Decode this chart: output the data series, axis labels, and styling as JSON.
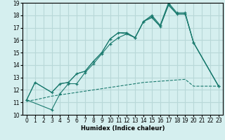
{
  "xlabel": "Humidex (Indice chaleur)",
  "xlim": [
    -0.5,
    23.5
  ],
  "ylim": [
    10,
    19
  ],
  "xticks": [
    0,
    1,
    2,
    3,
    4,
    5,
    6,
    7,
    8,
    9,
    10,
    11,
    12,
    13,
    14,
    15,
    16,
    17,
    18,
    19,
    20,
    21,
    22,
    23
  ],
  "yticks": [
    10,
    11,
    12,
    13,
    14,
    15,
    16,
    17,
    18,
    19
  ],
  "bg_color": "#d5efef",
  "grid_color": "#b8d8d8",
  "line_color": "#1a7a6e",
  "series": [
    {
      "x": [
        0,
        1,
        3,
        4,
        5,
        6,
        7,
        8,
        9,
        10,
        11,
        12,
        13,
        14,
        15,
        16,
        17,
        18,
        19,
        20,
        23
      ],
      "y": [
        11.2,
        12.6,
        11.8,
        12.5,
        12.6,
        13.3,
        13.5,
        14.3,
        15.0,
        16.1,
        16.6,
        16.6,
        16.2,
        17.5,
        18.0,
        17.2,
        19.0,
        18.2,
        18.2,
        15.8,
        12.3
      ],
      "has_markers": true,
      "linestyle": "-"
    },
    {
      "x": [
        0,
        1,
        3,
        4,
        5,
        6,
        7,
        8,
        9,
        10,
        11,
        12,
        13,
        14,
        15,
        16,
        17,
        18,
        19,
        20,
        23
      ],
      "y": [
        11.2,
        12.6,
        11.8,
        12.5,
        12.6,
        13.3,
        13.5,
        14.3,
        15.0,
        16.1,
        16.6,
        16.5,
        16.2,
        17.5,
        17.8,
        17.1,
        18.8,
        18.1,
        18.1,
        15.8,
        12.3
      ],
      "has_markers": false,
      "linestyle": "-"
    },
    {
      "x": [
        0,
        3,
        4,
        5,
        6,
        7,
        8,
        9,
        10,
        11,
        12,
        13,
        14,
        15,
        16,
        17,
        18,
        19,
        20,
        23
      ],
      "y": [
        11.2,
        10.4,
        11.7,
        12.5,
        12.5,
        13.4,
        14.1,
        14.9,
        15.7,
        16.2,
        16.5,
        16.2,
        17.5,
        17.9,
        17.1,
        18.9,
        18.1,
        18.1,
        15.8,
        12.3
      ],
      "has_markers": true,
      "linestyle": "-"
    },
    {
      "x": [
        0,
        1,
        2,
        3,
        4,
        5,
        6,
        7,
        8,
        9,
        10,
        11,
        12,
        13,
        14,
        15,
        16,
        17,
        18,
        19,
        20,
        23
      ],
      "y": [
        11.1,
        11.2,
        11.35,
        11.5,
        11.6,
        11.7,
        11.8,
        11.9,
        12.0,
        12.1,
        12.2,
        12.3,
        12.4,
        12.5,
        12.6,
        12.65,
        12.7,
        12.75,
        12.8,
        12.85,
        12.3,
        12.3
      ],
      "has_markers": false,
      "linestyle": "--"
    }
  ]
}
